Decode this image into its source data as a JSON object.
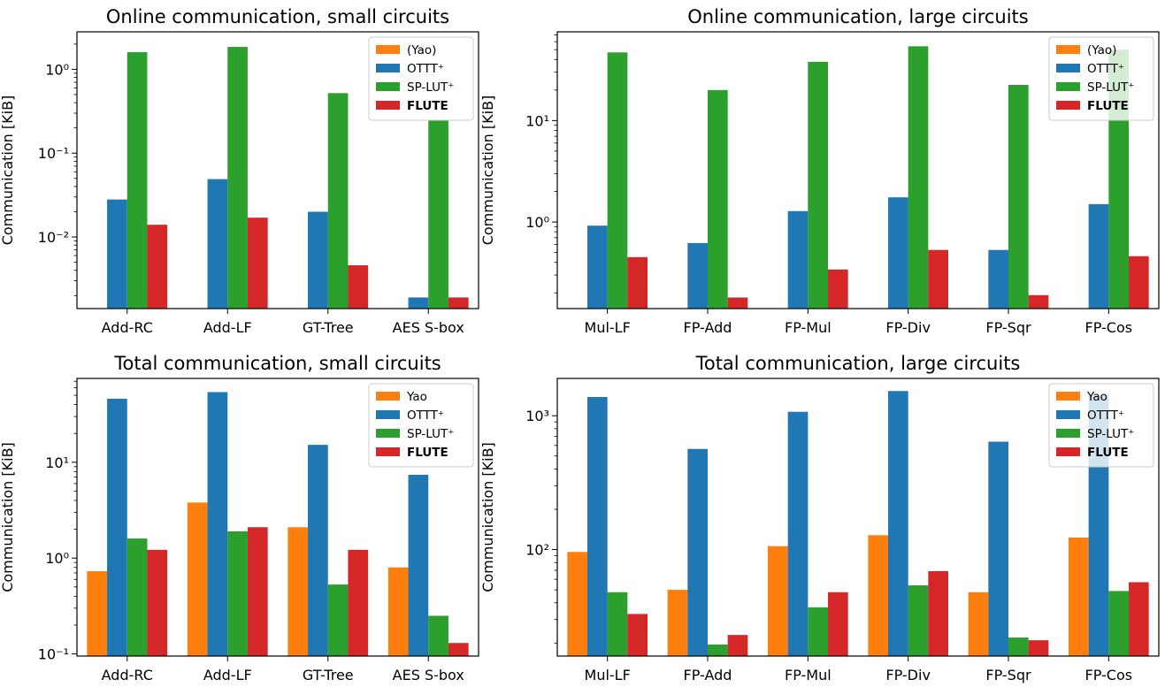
{
  "colors": {
    "yao": "#ff7f0e",
    "ottt": "#1f77b4",
    "splut": "#2ca02c",
    "flute": "#d62728"
  },
  "chart_data": [
    {
      "type": "bar",
      "title": "Online communication, small circuits",
      "ylabel": "Communication [KiB]",
      "yscale": "log",
      "ylim": [
        0.0014,
        2.8
      ],
      "yticks": [
        {
          "value": 0.01,
          "label": "10⁻²"
        },
        {
          "value": 0.1,
          "label": "10⁻¹"
        },
        {
          "value": 1,
          "label": "10⁰"
        }
      ],
      "categories": [
        "Add-RC",
        "Add-LF",
        "GT-Tree",
        "AES S-box"
      ],
      "legend_position": "top-right",
      "series": [
        {
          "name": "(Yao)",
          "key": "yao",
          "values": [
            null,
            null,
            null,
            null
          ]
        },
        {
          "name": "OTTT⁺",
          "key": "ottt",
          "values": [
            0.028,
            0.049,
            0.02,
            0.0019
          ]
        },
        {
          "name": "SP-LUT⁺",
          "key": "splut",
          "values": [
            1.6,
            1.85,
            0.52,
            0.25
          ]
        },
        {
          "name": "FLUTE",
          "key": "flute",
          "bold": true,
          "values": [
            0.014,
            0.017,
            0.0046,
            0.0019
          ]
        }
      ]
    },
    {
      "type": "bar",
      "title": "Online communication, large circuits",
      "ylabel": "Communication [KiB]",
      "yscale": "log",
      "ylim": [
        0.14,
        75
      ],
      "yticks": [
        {
          "value": 1,
          "label": "10⁰"
        },
        {
          "value": 10,
          "label": "10¹"
        }
      ],
      "categories": [
        "Mul-LF",
        "FP-Add",
        "FP-Mul",
        "FP-Div",
        "FP-Sqr",
        "FP-Cos"
      ],
      "legend_position": "top-right",
      "series": [
        {
          "name": "(Yao)",
          "key": "yao",
          "values": [
            null,
            null,
            null,
            null,
            null,
            null
          ]
        },
        {
          "name": "OTTT⁺",
          "key": "ottt",
          "values": [
            0.92,
            0.62,
            1.28,
            1.75,
            0.53,
            1.5
          ]
        },
        {
          "name": "SP-LUT⁺",
          "key": "splut",
          "values": [
            47,
            20,
            38,
            54,
            22.5,
            50
          ]
        },
        {
          "name": "FLUTE",
          "key": "flute",
          "bold": true,
          "values": [
            0.45,
            0.18,
            0.34,
            0.53,
            0.19,
            0.46
          ]
        }
      ]
    },
    {
      "type": "bar",
      "title": "Total communication, small circuits",
      "ylabel": "Communication [KiB]",
      "yscale": "log",
      "ylim": [
        0.095,
        75
      ],
      "yticks": [
        {
          "value": 0.1,
          "label": "10⁻¹"
        },
        {
          "value": 1,
          "label": "10⁰"
        },
        {
          "value": 10,
          "label": "10¹"
        }
      ],
      "categories": [
        "Add-RC",
        "Add-LF",
        "GT-Tree",
        "AES S-box"
      ],
      "legend_position": "top-right",
      "series": [
        {
          "name": "Yao",
          "key": "yao",
          "values": [
            0.73,
            3.8,
            2.1,
            0.8
          ]
        },
        {
          "name": "OTTT⁺",
          "key": "ottt",
          "values": [
            46,
            54,
            15.2,
            7.4
          ]
        },
        {
          "name": "SP-LUT⁺",
          "key": "splut",
          "values": [
            1.6,
            1.9,
            0.53,
            0.25
          ]
        },
        {
          "name": "FLUTE",
          "key": "flute",
          "bold": true,
          "values": [
            1.22,
            2.1,
            1.22,
            0.13
          ]
        }
      ]
    },
    {
      "type": "bar",
      "title": "Total communication, large circuits",
      "ylabel": "Communication [KiB]",
      "yscale": "log",
      "ylim": [
        16,
        1900
      ],
      "yticks": [
        {
          "value": 100,
          "label": "10²"
        },
        {
          "value": 1000,
          "label": "10³"
        }
      ],
      "categories": [
        "Mul-LF",
        "FP-Add",
        "FP-Mul",
        "FP-Div",
        "FP-Sqr",
        "FP-Cos"
      ],
      "legend_position": "top-right",
      "series": [
        {
          "name": "Yao",
          "key": "yao",
          "values": [
            96,
            50,
            106,
            128,
            48,
            123
          ]
        },
        {
          "name": "OTTT⁺",
          "key": "ottt",
          "values": [
            1380,
            565,
            1070,
            1530,
            640,
            1420
          ]
        },
        {
          "name": "SP-LUT⁺",
          "key": "splut",
          "values": [
            48,
            19.5,
            37,
            54,
            22,
            49
          ]
        },
        {
          "name": "FLUTE",
          "key": "flute",
          "bold": true,
          "values": [
            33,
            23,
            48,
            69,
            21,
            57
          ]
        }
      ]
    }
  ]
}
